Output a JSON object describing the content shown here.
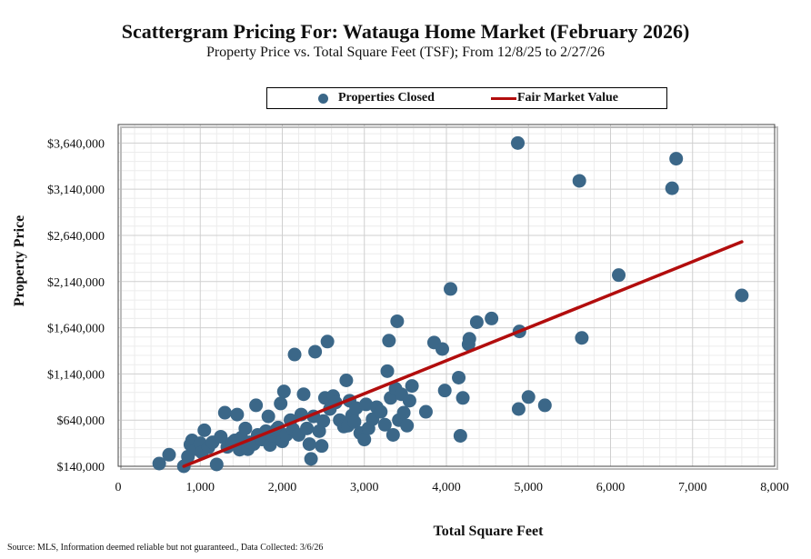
{
  "chart_data": {
    "type": "scatter",
    "title": "Scattergram Pricing For: Watauga Home Market (February 2026)",
    "subtitle": "Property Price vs. Total Square Feet (TSF); From 12/8/25 to 2/27/26",
    "xlabel": "Total Square Feet",
    "ylabel": "Property Price",
    "xlim": [
      0,
      8000
    ],
    "ylim": [
      140000,
      3840000
    ],
    "xticks": [
      0,
      1000,
      2000,
      3000,
      4000,
      5000,
      6000,
      7000,
      8000
    ],
    "xtick_labels": [
      "0",
      "1,000",
      "2,000",
      "3,000",
      "4,000",
      "5,000",
      "6,000",
      "7,000",
      "8,000"
    ],
    "yticks": [
      140000,
      640000,
      1140000,
      1640000,
      2140000,
      2640000,
      3140000,
      3640000
    ],
    "ytick_labels": [
      "$140,000",
      "$640,000",
      "$1,140,000",
      "$1,640,000",
      "$2,140,000",
      "$2,640,000",
      "$3,140,000",
      "$3,640,000"
    ],
    "grid": true,
    "legend": {
      "position": "top",
      "items": [
        {
          "label": "Properties Closed",
          "marker": "circle"
        },
        {
          "label": "Fair Market Value",
          "marker": "line"
        }
      ]
    },
    "colors": {
      "points": "#3b6788",
      "trend": "#b20d0d",
      "grid_major": "#cfcfcf",
      "grid_minor": "#ececec"
    },
    "series": [
      {
        "name": "Properties Closed",
        "points": [
          [
            500,
            170000
          ],
          [
            620,
            265000
          ],
          [
            800,
            140000
          ],
          [
            850,
            245000
          ],
          [
            880,
            375000
          ],
          [
            900,
            420000
          ],
          [
            950,
            325000
          ],
          [
            1000,
            390000
          ],
          [
            1020,
            290000
          ],
          [
            1050,
            530000
          ],
          [
            1100,
            345000
          ],
          [
            1150,
            400000
          ],
          [
            1200,
            160000
          ],
          [
            1250,
            460000
          ],
          [
            1300,
            720000
          ],
          [
            1330,
            350000
          ],
          [
            1380,
            390000
          ],
          [
            1420,
            420000
          ],
          [
            1450,
            700000
          ],
          [
            1480,
            320000
          ],
          [
            1500,
            450000
          ],
          [
            1550,
            550000
          ],
          [
            1580,
            325000
          ],
          [
            1600,
            400000
          ],
          [
            1650,
            380000
          ],
          [
            1680,
            800000
          ],
          [
            1700,
            480000
          ],
          [
            1750,
            430000
          ],
          [
            1800,
            520000
          ],
          [
            1830,
            680000
          ],
          [
            1850,
            370000
          ],
          [
            1880,
            470000
          ],
          [
            1920,
            530000
          ],
          [
            1950,
            560000
          ],
          [
            1980,
            820000
          ],
          [
            2000,
            410000
          ],
          [
            2020,
            950000
          ],
          [
            2050,
            480000
          ],
          [
            2100,
            640000
          ],
          [
            2130,
            540000
          ],
          [
            2150,
            1350000
          ],
          [
            2200,
            480000
          ],
          [
            2230,
            700000
          ],
          [
            2260,
            920000
          ],
          [
            2300,
            550000
          ],
          [
            2330,
            380000
          ],
          [
            2350,
            220000
          ],
          [
            2380,
            680000
          ],
          [
            2400,
            1380000
          ],
          [
            2450,
            520000
          ],
          [
            2480,
            360000
          ],
          [
            2500,
            630000
          ],
          [
            2520,
            880000
          ],
          [
            2550,
            1490000
          ],
          [
            2580,
            760000
          ],
          [
            2620,
            900000
          ],
          [
            2650,
            830000
          ],
          [
            2700,
            640000
          ],
          [
            2750,
            570000
          ],
          [
            2780,
            1070000
          ],
          [
            2800,
            580000
          ],
          [
            2820,
            850000
          ],
          [
            2850,
            690000
          ],
          [
            2880,
            620000
          ],
          [
            2900,
            770000
          ],
          [
            2950,
            500000
          ],
          [
            3000,
            430000
          ],
          [
            3020,
            810000
          ],
          [
            3050,
            550000
          ],
          [
            3100,
            650000
          ],
          [
            3150,
            780000
          ],
          [
            3200,
            730000
          ],
          [
            3250,
            590000
          ],
          [
            3280,
            1170000
          ],
          [
            3300,
            1500000
          ],
          [
            3320,
            880000
          ],
          [
            3350,
            480000
          ],
          [
            3380,
            980000
          ],
          [
            3400,
            1710000
          ],
          [
            3420,
            640000
          ],
          [
            3450,
            920000
          ],
          [
            3480,
            720000
          ],
          [
            3520,
            580000
          ],
          [
            3550,
            850000
          ],
          [
            3580,
            1010000
          ],
          [
            3750,
            730000
          ],
          [
            3850,
            1480000
          ],
          [
            3950,
            1410000
          ],
          [
            3980,
            960000
          ],
          [
            4050,
            2060000
          ],
          [
            4150,
            1100000
          ],
          [
            4170,
            470000
          ],
          [
            4200,
            880000
          ],
          [
            4270,
            1460000
          ],
          [
            4280,
            1520000
          ],
          [
            4370,
            1700000
          ],
          [
            4550,
            1740000
          ],
          [
            4870,
            3640000
          ],
          [
            4880,
            760000
          ],
          [
            4890,
            1600000
          ],
          [
            5000,
            890000
          ],
          [
            5200,
            800000
          ],
          [
            5620,
            3230000
          ],
          [
            5650,
            1530000
          ],
          [
            6100,
            2210000
          ],
          [
            6750,
            3150000
          ],
          [
            6800,
            3470000
          ],
          [
            7600,
            1990000
          ]
        ]
      },
      {
        "name": "Fair Market Value",
        "line": [
          [
            800,
            140000
          ],
          [
            7600,
            2570000
          ]
        ]
      }
    ]
  },
  "footer": {
    "source": "Source: MLS, Information deemed reliable but not guaranteed., Data Collected: 3/6/26"
  }
}
